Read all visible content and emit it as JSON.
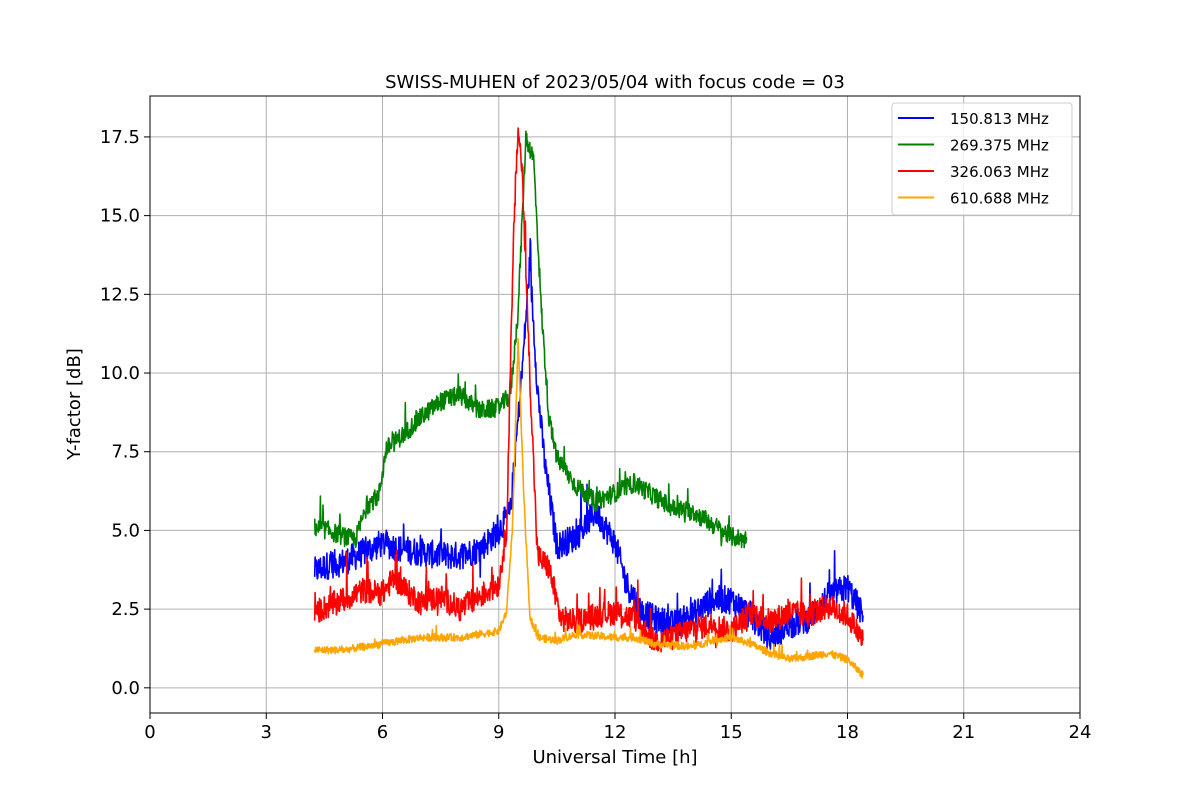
{
  "chart_data": {
    "type": "line",
    "title": "SWISS-MUHEN of 2023/05/04 with focus code = 03",
    "xlabel": "Universal Time [h]",
    "ylabel": "Y-factor [dB]",
    "xlim": [
      0,
      24
    ],
    "ylim": [
      -0.8,
      18.8
    ],
    "xticks": [
      0,
      3,
      6,
      9,
      12,
      15,
      18,
      21,
      24
    ],
    "xtick_labels": [
      "0",
      "3",
      "6",
      "9",
      "12",
      "15",
      "18",
      "21",
      "24"
    ],
    "yticks": [
      0,
      2.5,
      5,
      7.5,
      10,
      12.5,
      15,
      17.5
    ],
    "ytick_labels": [
      "0.0",
      "2.5",
      "5.0",
      "7.5",
      "10.0",
      "12.5",
      "15.0",
      "17.5"
    ],
    "grid": true,
    "legend_position": "top-right",
    "series": [
      {
        "name": "150.813 MHz",
        "color": "#0000ff",
        "noise": 0.45,
        "x": [
          4.25,
          4.6,
          5.0,
          5.5,
          6.0,
          6.5,
          7.0,
          7.5,
          8.0,
          8.5,
          9.0,
          9.3,
          9.6,
          9.8,
          10.0,
          10.2,
          10.5,
          11.0,
          11.5,
          12.0,
          12.3,
          12.7,
          13.0,
          13.5,
          14.0,
          14.5,
          15.0,
          15.5,
          16.0,
          16.5,
          17.0,
          17.5,
          18.0,
          18.4
        ],
        "y": [
          3.7,
          3.9,
          4.0,
          4.3,
          4.6,
          4.4,
          4.3,
          4.2,
          4.2,
          4.4,
          5.0,
          5.6,
          10.0,
          13.5,
          9.5,
          7.0,
          4.5,
          4.8,
          5.6,
          4.6,
          3.3,
          2.4,
          2.2,
          2.0,
          2.3,
          2.8,
          2.8,
          2.3,
          1.6,
          2.0,
          2.2,
          2.9,
          3.2,
          2.3
        ]
      },
      {
        "name": "269.375 MHz",
        "color": "#008000",
        "noise": 0.3,
        "x": [
          4.25,
          4.6,
          5.0,
          5.3,
          5.6,
          5.9,
          6.1,
          6.5,
          7.0,
          7.5,
          8.0,
          8.5,
          9.0,
          9.3,
          9.5,
          9.7,
          9.9,
          10.1,
          10.3,
          10.5,
          11.0,
          11.5,
          12.0,
          12.5,
          13.0,
          13.5,
          14.0,
          14.5,
          15.0,
          15.4
        ],
        "y": [
          5.1,
          5.0,
          4.8,
          4.7,
          5.8,
          6.1,
          7.6,
          8.0,
          8.6,
          9.1,
          9.3,
          8.8,
          8.9,
          9.3,
          12.0,
          17.5,
          16.8,
          12.0,
          8.5,
          7.3,
          6.4,
          5.9,
          6.2,
          6.5,
          6.1,
          5.7,
          5.6,
          5.2,
          4.8,
          4.7
        ]
      },
      {
        "name": "326.063 MHz",
        "color": "#ff0000",
        "noise": 0.4,
        "x": [
          4.25,
          4.6,
          5.0,
          5.5,
          6.0,
          6.3,
          6.6,
          7.0,
          7.5,
          8.0,
          8.5,
          9.0,
          9.2,
          9.4,
          9.5,
          9.6,
          9.8,
          10.0,
          10.3,
          10.6,
          11.0,
          11.5,
          12.0,
          12.5,
          13.0,
          13.5,
          14.0,
          14.5,
          15.0,
          15.5,
          16.0,
          16.5,
          17.0,
          17.5,
          18.0,
          18.4
        ],
        "y": [
          2.4,
          2.6,
          2.8,
          3.1,
          3.0,
          3.5,
          3.1,
          2.7,
          2.9,
          2.5,
          2.9,
          3.3,
          5.0,
          15.0,
          17.8,
          16.5,
          10.0,
          4.2,
          3.8,
          2.2,
          2.1,
          2.3,
          2.4,
          2.2,
          1.5,
          1.6,
          1.9,
          2.0,
          1.8,
          2.4,
          2.1,
          2.4,
          2.3,
          2.6,
          2.3,
          1.5
        ]
      },
      {
        "name": "610.688 MHz",
        "color": "#ffa500",
        "noise": 0.12,
        "x": [
          4.25,
          5.0,
          6.0,
          7.0,
          8.0,
          8.5,
          9.0,
          9.2,
          9.35,
          9.5,
          9.65,
          9.8,
          10.0,
          10.5,
          11.0,
          12.0,
          12.5,
          13.0,
          14.0,
          14.5,
          15.0,
          15.5,
          16.0,
          16.5,
          17.0,
          17.5,
          18.0,
          18.4
        ],
        "y": [
          1.2,
          1.2,
          1.4,
          1.6,
          1.6,
          1.7,
          1.8,
          2.4,
          5.0,
          11.0,
          6.0,
          2.3,
          1.6,
          1.5,
          1.7,
          1.6,
          1.6,
          1.4,
          1.3,
          1.5,
          1.6,
          1.4,
          1.1,
          0.9,
          1.0,
          1.1,
          0.9,
          0.4
        ]
      }
    ]
  }
}
